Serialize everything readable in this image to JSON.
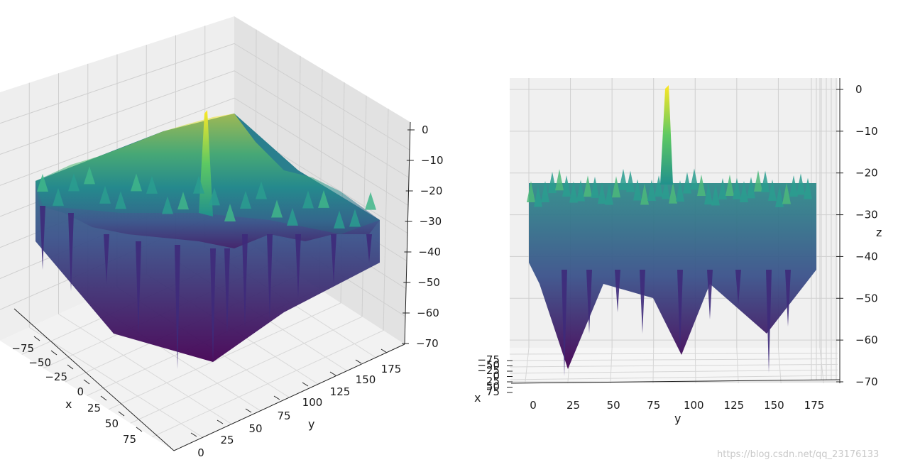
{
  "chart_data": [
    {
      "type": "surface",
      "view": "isometric",
      "colormap": "viridis",
      "grid": true,
      "x_axis": {
        "label": "x",
        "ticks": [
          "−75",
          "−50",
          "−25",
          "0",
          "25",
          "50",
          "75"
        ],
        "range": [
          -90,
          90
        ]
      },
      "y_axis": {
        "label": "y",
        "ticks": [
          "0",
          "25",
          "50",
          "75",
          "100",
          "125",
          "150",
          "175"
        ],
        "range": [
          0,
          180
        ]
      },
      "z_axis": {
        "label": "",
        "ticks": [
          "0",
          "−10",
          "−20",
          "−30",
          "−40",
          "−50",
          "−60",
          "−70"
        ],
        "range": [
          -70,
          0
        ]
      },
      "peak": {
        "x": 0,
        "y": 84,
        "z": 0
      },
      "surface_floor_typical": -30,
      "surface_plateau_typical": -22,
      "min_z": -70
    },
    {
      "type": "surface",
      "view": "side (looking along x)",
      "colormap": "viridis",
      "grid": true,
      "x_axis": {
        "label": "x",
        "ticks": [
          "−75",
          "−50",
          "−25",
          "0",
          "25",
          "50",
          "75"
        ],
        "range": [
          -90,
          90
        ]
      },
      "y_axis": {
        "label": "y",
        "ticks": [
          "0",
          "25",
          "50",
          "75",
          "100",
          "125",
          "150",
          "175"
        ],
        "range": [
          0,
          180
        ]
      },
      "z_axis": {
        "label": "z",
        "ticks": [
          "0",
          "−10",
          "−20",
          "−30",
          "−40",
          "−50",
          "−60",
          "−70"
        ],
        "range": [
          -70,
          0
        ]
      },
      "peak": {
        "x": 0,
        "y": 84,
        "z": 0
      },
      "surface_floor_typical": -30,
      "surface_plateau_typical": -22,
      "min_z": -70
    }
  ],
  "watermark": "https://blog.csdn.net/qq_23176133"
}
